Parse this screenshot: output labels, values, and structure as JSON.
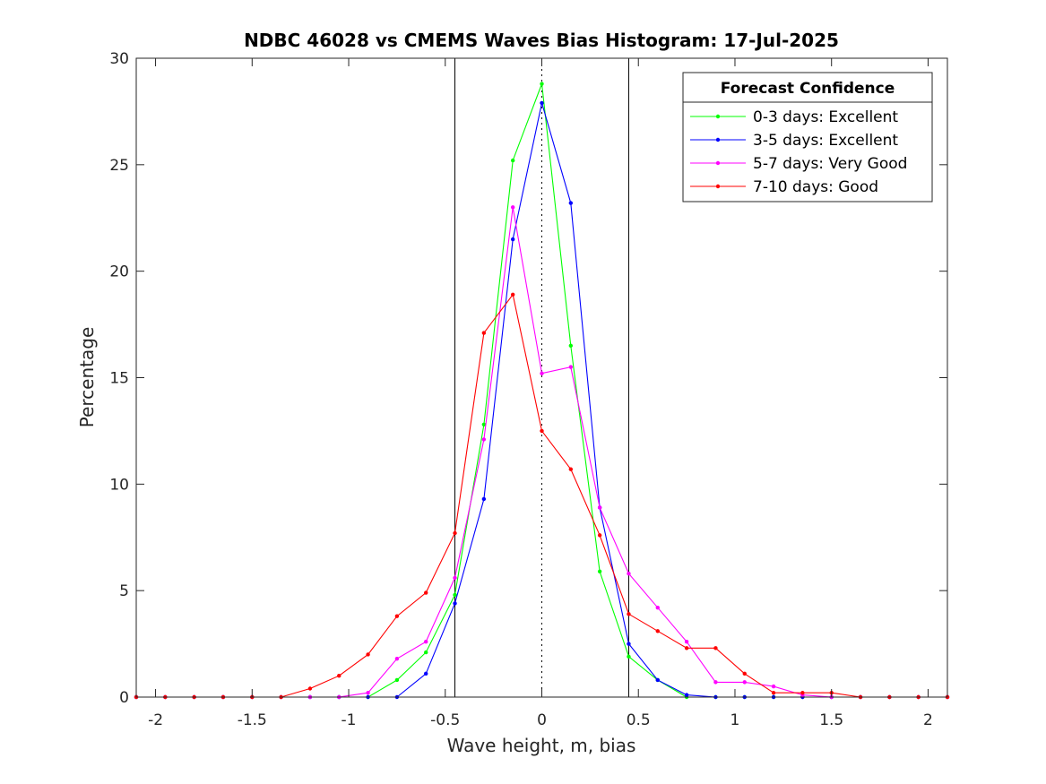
{
  "chart_data": {
    "type": "line",
    "title": "NDBC 46028 vs CMEMS Waves Bias Histogram: 17-Jul-2025",
    "xlabel": "Wave height, m, bias",
    "ylabel": "Percentage",
    "xlim": [
      -2.1,
      2.1
    ],
    "ylim": [
      0,
      30
    ],
    "xticks": [
      -2,
      -1.5,
      -1,
      -0.5,
      0,
      0.5,
      1,
      1.5,
      2
    ],
    "xtick_labels": [
      "-2",
      "-1.5",
      "-1",
      "-0.5",
      "0",
      "0.5",
      "1",
      "1.5",
      "2"
    ],
    "yticks": [
      0,
      5,
      10,
      15,
      20,
      25,
      30
    ],
    "ytick_labels": [
      "0",
      "5",
      "10",
      "15",
      "20",
      "25",
      "30"
    ],
    "reference_lines": {
      "solid_vertical": [
        -0.45,
        0.45
      ],
      "dotted_vertical": [
        0
      ]
    },
    "legend": {
      "title": "Forecast Confidence",
      "placement": "top-right"
    },
    "x": [
      -2.1,
      -1.95,
      -1.8,
      -1.65,
      -1.5,
      -1.35,
      -1.2,
      -1.05,
      -0.9,
      -0.75,
      -0.6,
      -0.45,
      -0.3,
      -0.15,
      0,
      0.15,
      0.3,
      0.45,
      0.6,
      0.75,
      0.9,
      1.05,
      1.2,
      1.35,
      1.5,
      1.65,
      1.8,
      1.95,
      2.1
    ],
    "series": [
      {
        "name": "0-3 days: Excellent",
        "color": "#00ff00",
        "values": [
          0,
          0,
          0,
          0,
          0,
          0,
          0,
          0,
          0,
          0.8,
          2.1,
          4.8,
          12.8,
          25.2,
          28.8,
          16.5,
          5.9,
          1.9,
          0.8,
          0,
          0,
          0,
          0,
          0,
          0,
          0,
          0,
          0,
          0
        ]
      },
      {
        "name": "3-5 days: Excellent",
        "color": "#0000ff",
        "values": [
          0,
          0,
          0,
          0,
          0,
          0,
          0,
          0,
          0,
          0,
          1.1,
          4.4,
          9.3,
          21.5,
          27.9,
          23.2,
          8.9,
          2.5,
          0.8,
          0.1,
          0,
          0,
          0,
          0,
          0,
          0,
          0,
          0,
          0
        ]
      },
      {
        "name": "5-7 days: Very Good",
        "color": "#ff00ff",
        "values": [
          0,
          0,
          0,
          0,
          0,
          0,
          0,
          0,
          0.2,
          1.8,
          2.6,
          5.6,
          12.1,
          23.0,
          15.2,
          15.5,
          8.9,
          5.8,
          4.2,
          2.6,
          0.7,
          0.7,
          0.5,
          0.1,
          0,
          0,
          0,
          0,
          0
        ]
      },
      {
        "name": "7-10 days: Good",
        "color": "#ff0000",
        "values": [
          0,
          0,
          0,
          0,
          0,
          0,
          0.4,
          1.0,
          2.0,
          3.8,
          4.9,
          7.7,
          17.1,
          18.9,
          12.5,
          10.7,
          7.6,
          3.9,
          3.1,
          2.3,
          2.3,
          1.1,
          0.2,
          0.2,
          0.2,
          0,
          0,
          0,
          0
        ]
      }
    ]
  }
}
